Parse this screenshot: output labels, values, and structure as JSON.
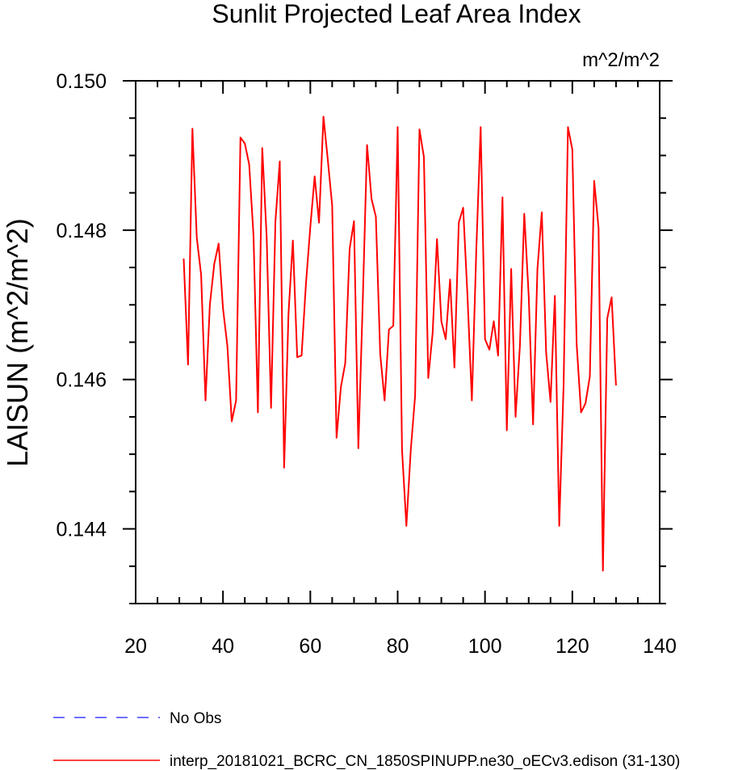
{
  "chart_data": {
    "type": "line",
    "title": "Sunlit Projected Leaf Area Index",
    "subtitle": "m^2/m^2",
    "xlabel": "",
    "ylabel": "LAISUN  (m^2/m^2)",
    "xlim": [
      20,
      140
    ],
    "ylim": [
      0.143,
      0.15
    ],
    "x_major_ticks": [
      20,
      40,
      60,
      80,
      100,
      120,
      140
    ],
    "x_tick_labels": [
      "20",
      "40",
      "60",
      "80",
      "100",
      "120",
      "140"
    ],
    "x_minor_step": 5,
    "y_major_ticks": [
      0.144,
      0.146,
      0.148,
      0.15
    ],
    "y_tick_labels": [
      "0.144",
      "0.146",
      "0.148",
      "0.150"
    ],
    "y_minor_step": 0.0005,
    "grid": false,
    "legend_position": "bottom-left",
    "series": [
      {
        "name": "No Obs",
        "color": "#4040ff",
        "dash": true,
        "x": [],
        "y": []
      },
      {
        "name": "interp_20181021_BCRC_CN_1850SPINUPP.ne30_oECv3.edison (31-130)",
        "color": "#ff0000",
        "dash": false,
        "x": [
          31,
          32,
          33,
          34,
          35,
          36,
          37,
          38,
          39,
          40,
          41,
          42,
          43,
          44,
          45,
          46,
          47,
          48,
          49,
          50,
          51,
          52,
          53,
          54,
          55,
          56,
          57,
          58,
          59,
          60,
          61,
          62,
          63,
          64,
          65,
          66,
          67,
          68,
          69,
          70,
          71,
          72,
          73,
          74,
          75,
          76,
          77,
          78,
          79,
          80,
          81,
          82,
          83,
          84,
          85,
          86,
          87,
          88,
          89,
          90,
          91,
          92,
          93,
          94,
          95,
          96,
          97,
          98,
          99,
          100,
          101,
          102,
          103,
          104,
          105,
          106,
          107,
          108,
          109,
          110,
          111,
          112,
          113,
          114,
          115,
          116,
          117,
          118,
          119,
          120,
          121,
          122,
          123,
          124,
          125,
          126,
          127,
          128,
          129,
          130
        ],
        "y": [
          0.14762,
          0.1462,
          0.14936,
          0.1479,
          0.1474,
          0.14572,
          0.147,
          0.14755,
          0.14782,
          0.14695,
          0.14645,
          0.14544,
          0.14572,
          0.14924,
          0.14916,
          0.14888,
          0.14792,
          0.14556,
          0.1491,
          0.1479,
          0.14562,
          0.14812,
          0.14892,
          0.14482,
          0.14688,
          0.14786,
          0.1463,
          0.14632,
          0.14728,
          0.14804,
          0.14872,
          0.1481,
          0.14952,
          0.14894,
          0.14833,
          0.14522,
          0.1459,
          0.14622,
          0.14775,
          0.14812,
          0.14508,
          0.14702,
          0.14914,
          0.14842,
          0.14818,
          0.14634,
          0.14572,
          0.14667,
          0.14672,
          0.14938,
          0.14506,
          0.14404,
          0.14505,
          0.14578,
          0.14935,
          0.14898,
          0.14602,
          0.14662,
          0.14788,
          0.14678,
          0.14654,
          0.14734,
          0.14616,
          0.1481,
          0.1483,
          0.14711,
          0.14572,
          0.14774,
          0.14938,
          0.14654,
          0.1464,
          0.14678,
          0.14632,
          0.14844,
          0.14532,
          0.14748,
          0.1455,
          0.14645,
          0.14822,
          0.14712,
          0.1454,
          0.14748,
          0.14824,
          0.14636,
          0.1457,
          0.14712,
          0.14404,
          0.14592,
          0.14938,
          0.14908,
          0.14647,
          0.14556,
          0.14568,
          0.14604,
          0.14866,
          0.14803,
          0.14344,
          0.14682,
          0.1471,
          0.14592
        ]
      }
    ]
  }
}
